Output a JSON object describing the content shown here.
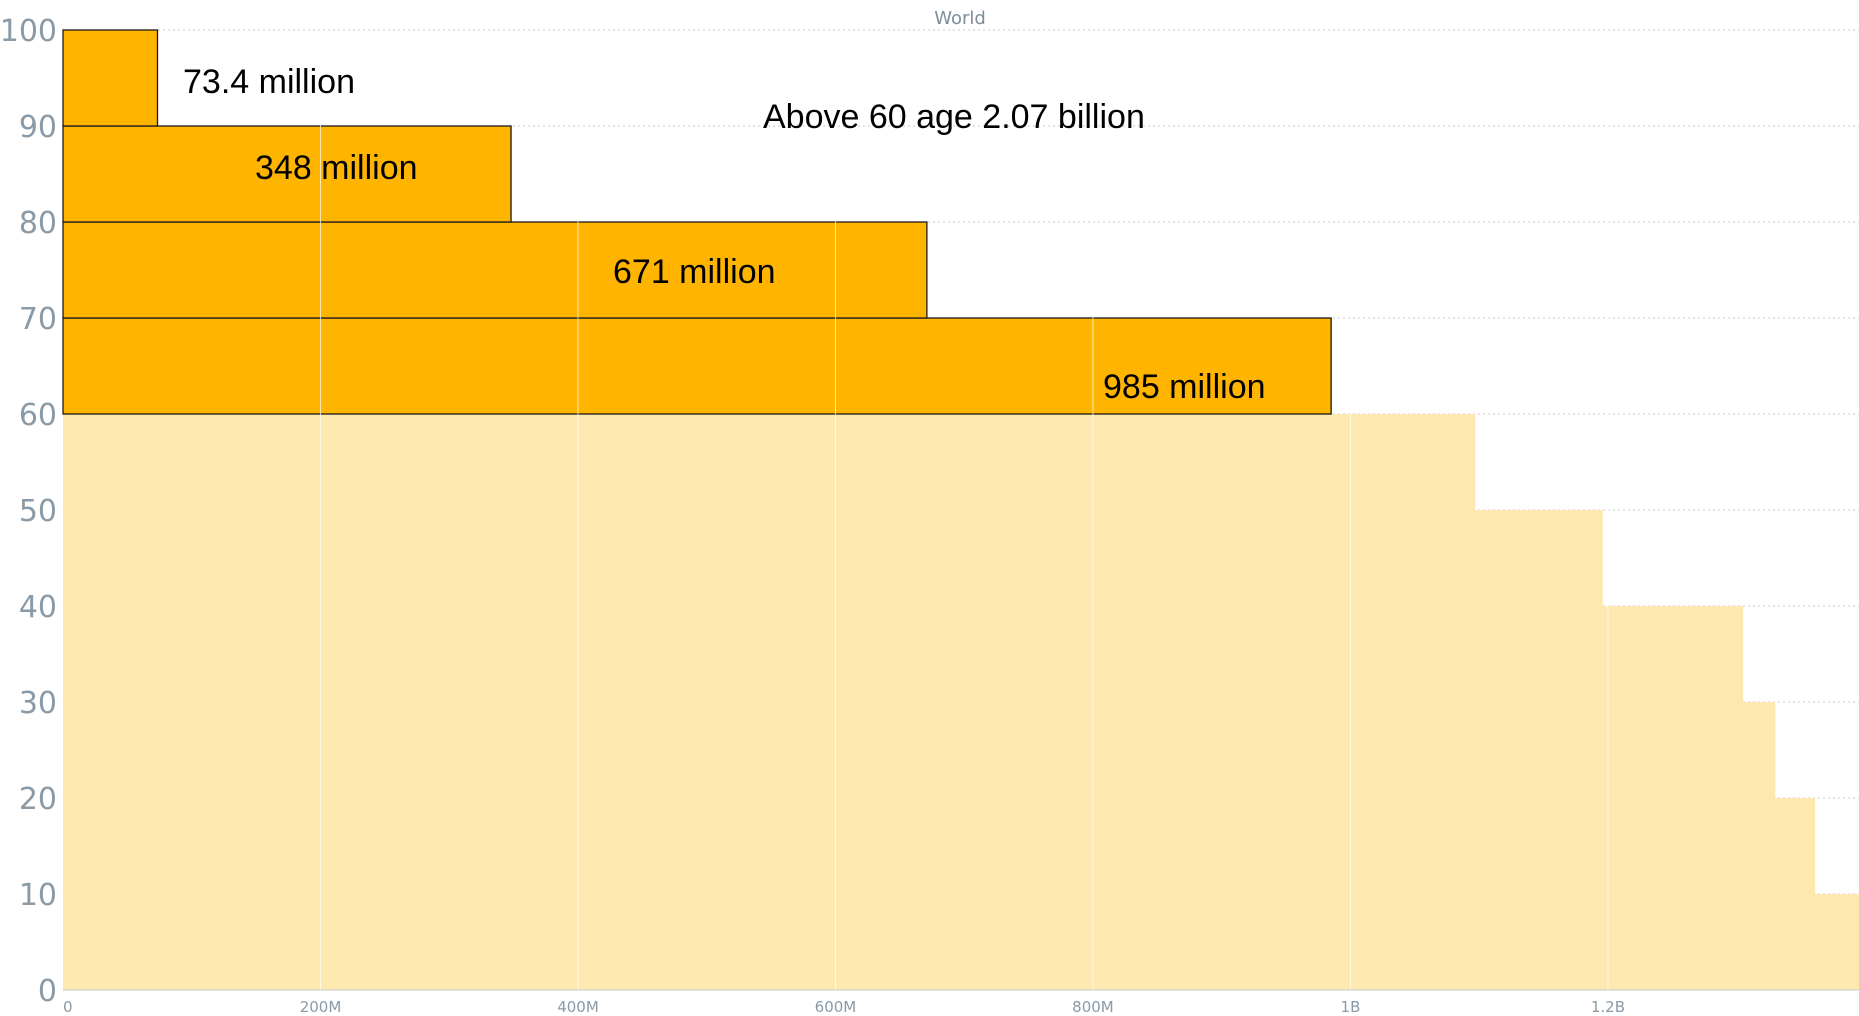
{
  "chart_data": {
    "type": "bar",
    "orientation": "horizontal",
    "title": "World",
    "xlabel": "",
    "ylabel": "",
    "xlim": [
      0,
      1395000000
    ],
    "ylim": [
      0,
      100
    ],
    "y_ticks": [
      "0",
      "10",
      "20",
      "30",
      "40",
      "50",
      "60",
      "70",
      "80",
      "90",
      "100"
    ],
    "x_ticks": [
      {
        "value": 0,
        "label": "0"
      },
      {
        "value": 200000000,
        "label": "200M"
      },
      {
        "value": 400000000,
        "label": "400M"
      },
      {
        "value": 600000000,
        "label": "600M"
      },
      {
        "value": 800000000,
        "label": "800M"
      },
      {
        "value": 1000000000,
        "label": "1B"
      },
      {
        "value": 1200000000,
        "label": "1.2B"
      }
    ],
    "grid": "dotted horizontal",
    "bars": [
      {
        "age_from": 0,
        "age_to": 10,
        "value": 1395000000,
        "highlight": false
      },
      {
        "age_from": 10,
        "age_to": 20,
        "value": 1361000000,
        "highlight": false
      },
      {
        "age_from": 20,
        "age_to": 30,
        "value": 1330000000,
        "highlight": false
      },
      {
        "age_from": 30,
        "age_to": 40,
        "value": 1305000000,
        "highlight": false
      },
      {
        "age_from": 40,
        "age_to": 50,
        "value": 1196000000,
        "highlight": false
      },
      {
        "age_from": 50,
        "age_to": 60,
        "value": 1097000000,
        "highlight": false
      },
      {
        "age_from": 60,
        "age_to": 70,
        "value": 985000000,
        "highlight": true
      },
      {
        "age_from": 70,
        "age_to": 80,
        "value": 671000000,
        "highlight": true
      },
      {
        "age_from": 80,
        "age_to": 90,
        "value": 348000000,
        "highlight": true
      },
      {
        "age_from": 90,
        "age_to": 100,
        "value": 73400000,
        "highlight": true
      }
    ],
    "annotations": [
      {
        "text": "73.4  million",
        "for_age": 90
      },
      {
        "text": "348 million",
        "for_age": 80
      },
      {
        "text": "671 million",
        "for_age": 70
      },
      {
        "text": "985 million",
        "for_age": 60
      },
      {
        "text": "Above 60 age 2.07 billion",
        "for_age": null
      }
    ],
    "colors": {
      "highlight": "#ffb500",
      "normal": "#fde8b0",
      "outline": "#1a1a1a"
    }
  }
}
